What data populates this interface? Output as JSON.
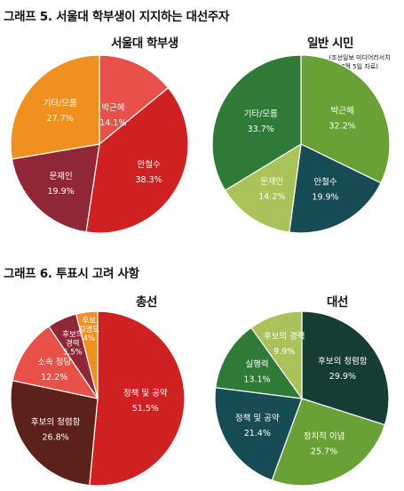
{
  "graph5": {
    "title": "그래프 5. 서울대 학부생이 지지하는 대선주자",
    "source_note_line1": "(조선일보 미디어리서치",
    "source_note_line2": "3월 5일 자료)"
  },
  "graph6": {
    "title": "그래프 6. 투표시 고려 사항"
  },
  "chart_data": [
    {
      "type": "pie",
      "title": "서울대 학부생",
      "categories": [
        "박근혜",
        "안철수",
        "문재인",
        "기타/모름"
      ],
      "values": [
        14.1,
        38.3,
        19.9,
        27.7
      ],
      "labels": [
        "14.1%",
        "38.3%",
        "19.9%",
        "27.7%"
      ],
      "colors": [
        "#e8504a",
        "#cf2121",
        "#8f2736",
        "#f0901e"
      ]
    },
    {
      "type": "pie",
      "title": "일반 시민",
      "categories": [
        "박근혜",
        "안철수",
        "문재인",
        "기타/모름"
      ],
      "values": [
        32.2,
        19.9,
        14.2,
        33.7
      ],
      "labels": [
        "32.2%",
        "19.9%",
        "14.2%",
        "33.7%"
      ],
      "colors": [
        "#69a136",
        "#184c54",
        "#a9c25a",
        "#2f7a37"
      ]
    },
    {
      "type": "pie",
      "title": "총선",
      "categories": [
        "정책 및 공약",
        "후보의 청렴함",
        "소속 정당",
        "후보의 경력",
        "후보 지명도"
      ],
      "label_lines": [
        [
          "정책 및 공약"
        ],
        [
          "후보의 청렴함"
        ],
        [
          "소속 정당"
        ],
        [
          "후보의",
          "경력"
        ],
        [
          "후보",
          "지명도"
        ]
      ],
      "values": [
        51.5,
        26.8,
        12.2,
        5.5,
        4
      ],
      "labels": [
        "51.5%",
        "26.8%",
        "12.2%",
        "5.5%",
        "4%"
      ],
      "colors": [
        "#cf2121",
        "#5c2119",
        "#e8504a",
        "#8f2736",
        "#f0901e"
      ]
    },
    {
      "type": "pie",
      "title": "대선",
      "categories": [
        "후보의 청렴함",
        "정치적 이념",
        "정책 및 공약",
        "실행력",
        "후보의 경력"
      ],
      "label_lines": [
        [
          "후보의 청렴함"
        ],
        [
          "정치적 이념"
        ],
        [
          "정책 및 공약"
        ],
        [
          "실행력"
        ],
        [
          "후보의 경력"
        ]
      ],
      "values": [
        29.9,
        25.7,
        21.4,
        13.1,
        9.9
      ],
      "labels": [
        "29.9%",
        "25.7%",
        "21.4%",
        "13.1%",
        "9.9%"
      ],
      "colors": [
        "#163d33",
        "#69a136",
        "#184c54",
        "#2f7a37",
        "#a9c25a"
      ]
    }
  ]
}
